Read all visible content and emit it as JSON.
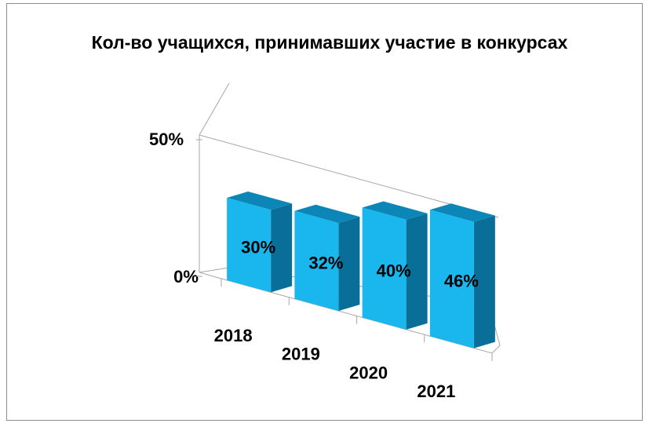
{
  "chart_data": {
    "type": "bar",
    "title": "Кол-во учащихся, принимавших участие в конкурсах",
    "categories": [
      "2018",
      "2019",
      "2020",
      "2021"
    ],
    "values": [
      30,
      32,
      40,
      46
    ],
    "data_labels": [
      "30%",
      "32%",
      "40%",
      "46%"
    ],
    "y_ticks": [
      "0%",
      "50%"
    ],
    "ylim": [
      0,
      50
    ],
    "grid": false,
    "legend": "none",
    "style": "3d-column",
    "colors": {
      "front": "#19b7ee",
      "top": "#0b86b6",
      "side": "#0a6f98"
    }
  }
}
